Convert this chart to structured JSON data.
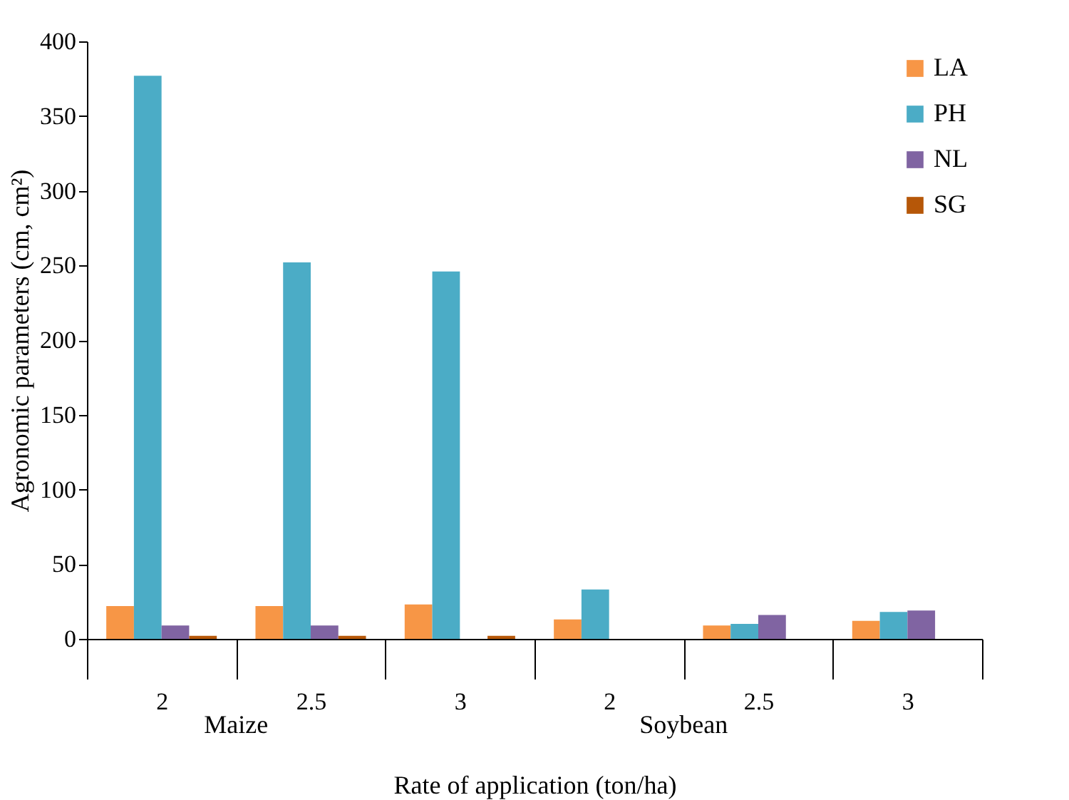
{
  "chart_data": {
    "type": "bar",
    "xlabel": "Rate of application (ton/ha)",
    "ylabel": "Agronomic parameters (cm, cm²)",
    "categories": [
      "2",
      "2.5",
      "3",
      "2",
      "2.5",
      "3"
    ],
    "annotations": [
      "Maize",
      "Soybean"
    ],
    "series": [
      {
        "name": "LA",
        "color": "#f79646",
        "values": [
          22,
          22,
          23,
          13,
          9,
          12
        ]
      },
      {
        "name": "PH",
        "color": "#4bacc6",
        "values": [
          377,
          252,
          246,
          33,
          10,
          18
        ]
      },
      {
        "name": "NL",
        "color": "#8064a2",
        "values": [
          9,
          9,
          null,
          null,
          16,
          19
        ]
      },
      {
        "name": "SG",
        "color": "#b65708",
        "values": [
          2,
          2,
          2,
          null,
          null,
          null
        ]
      }
    ],
    "ylim": [
      0,
      400
    ],
    "yticks": [
      0,
      50,
      100,
      150,
      200,
      250,
      300,
      350,
      400
    ],
    "grid": false,
    "legend": "top right"
  }
}
